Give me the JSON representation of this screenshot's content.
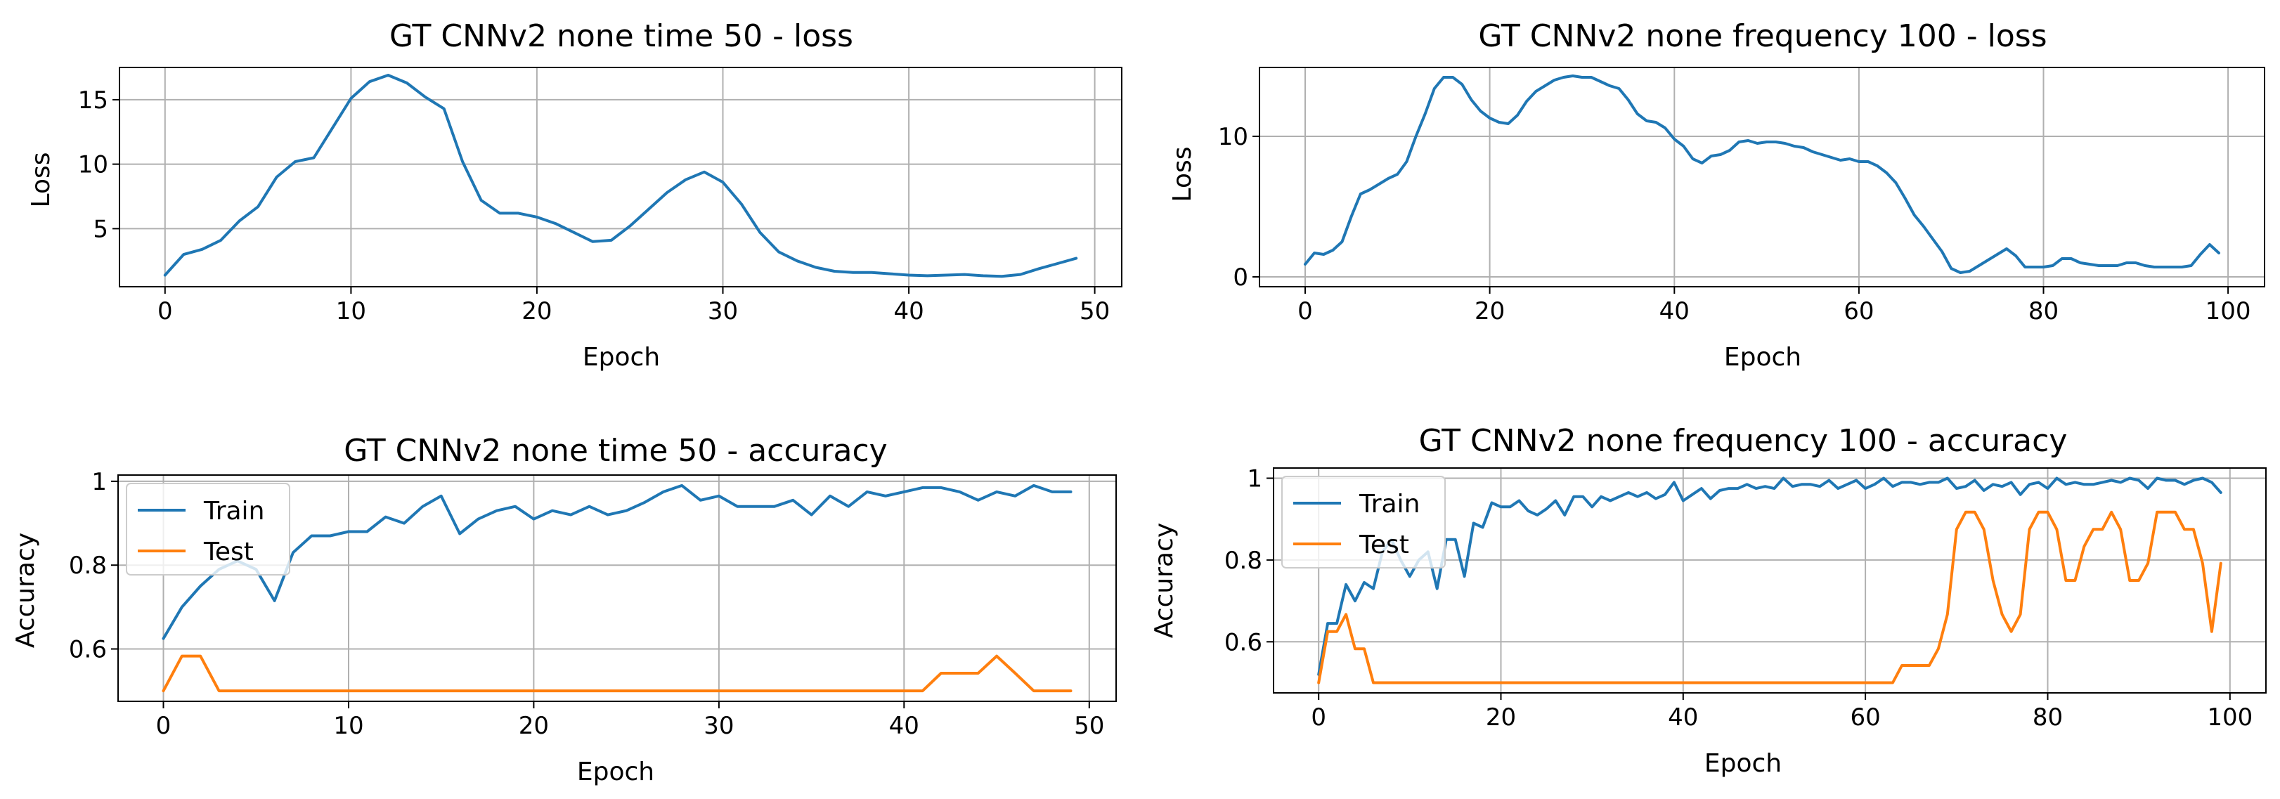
{
  "figure": {
    "colors": {
      "train": "#1f77b4",
      "test": "#ff7f0e",
      "grid": "#b0b0b0"
    }
  },
  "chart_data": [
    {
      "type": "line",
      "title": "GT CNNv2 none time 50 - loss",
      "xlabel": "Epoch",
      "ylabel": "Loss",
      "xlim": [
        -2.45,
        51.45
      ],
      "ylim": [
        0.5,
        17.5
      ],
      "xticks": [
        0,
        10,
        20,
        30,
        40,
        50
      ],
      "yticks": [
        5,
        10,
        15
      ],
      "grid": true,
      "legend": null,
      "series": [
        {
          "name": "Loss",
          "color": "#1f77b4",
          "x_start": 0,
          "values": [
            1.4,
            3.0,
            3.4,
            4.1,
            5.6,
            6.7,
            9.0,
            10.2,
            10.5,
            12.8,
            15.1,
            16.4,
            16.9,
            16.3,
            15.2,
            14.3,
            10.2,
            7.2,
            6.2,
            6.2,
            5.9,
            5.4,
            4.7,
            4.0,
            4.1,
            5.2,
            6.5,
            7.8,
            8.8,
            9.4,
            8.6,
            6.9,
            4.7,
            3.2,
            2.5,
            2.0,
            1.7,
            1.6,
            1.6,
            1.5,
            1.4,
            1.35,
            1.4,
            1.45,
            1.35,
            1.3,
            1.45,
            1.9,
            2.3,
            2.7
          ]
        }
      ]
    },
    {
      "type": "line",
      "title": "GT CNNv2 none frequency 100 - loss",
      "xlabel": "Epoch",
      "ylabel": "Loss",
      "xlim": [
        -4.95,
        103.95
      ],
      "ylim": [
        -0.7,
        14.9
      ],
      "xticks": [
        0,
        20,
        40,
        60,
        80,
        100
      ],
      "yticks": [
        0,
        10
      ],
      "grid": true,
      "legend": null,
      "series": [
        {
          "name": "Loss",
          "color": "#1f77b4",
          "x_start": 0,
          "values": [
            0.9,
            1.7,
            1.6,
            1.9,
            2.5,
            4.3,
            5.9,
            6.2,
            6.6,
            7.0,
            7.3,
            8.2,
            10.0,
            11.6,
            13.4,
            14.2,
            14.2,
            13.7,
            12.6,
            11.8,
            11.3,
            11.0,
            10.9,
            11.5,
            12.5,
            13.2,
            13.6,
            14.0,
            14.2,
            14.3,
            14.2,
            14.2,
            13.9,
            13.6,
            13.4,
            12.6,
            11.6,
            11.1,
            11.0,
            10.6,
            9.8,
            9.3,
            8.4,
            8.1,
            8.6,
            8.7,
            9.0,
            9.6,
            9.7,
            9.5,
            9.6,
            9.6,
            9.5,
            9.3,
            9.2,
            8.9,
            8.7,
            8.5,
            8.3,
            8.4,
            8.2,
            8.2,
            7.9,
            7.4,
            6.7,
            5.6,
            4.4,
            3.6,
            2.7,
            1.8,
            0.6,
            0.3,
            0.4,
            0.8,
            1.2,
            1.6,
            2.0,
            1.5,
            0.7,
            0.7,
            0.7,
            0.8,
            1.3,
            1.3,
            1.0,
            0.9,
            0.8,
            0.8,
            0.8,
            1.0,
            1.0,
            0.8,
            0.7,
            0.7,
            0.7,
            0.7,
            0.8,
            1.6,
            2.3,
            1.7
          ]
        }
      ]
    },
    {
      "type": "line",
      "title": "GT CNNv2 none time 50 - accuracy",
      "xlabel": "Epoch",
      "ylabel": "Accuracy",
      "xlim": [
        -2.45,
        51.45
      ],
      "ylim": [
        0.475,
        1.015
      ],
      "xticks": [
        0,
        10,
        20,
        30,
        40,
        50
      ],
      "yticks": [
        0.6,
        0.8,
        1.0
      ],
      "grid": true,
      "legend": "upper left",
      "series": [
        {
          "name": "Train",
          "color": "#1f77b4",
          "x_start": 0,
          "values": [
            0.625,
            0.7,
            0.75,
            0.79,
            0.81,
            0.79,
            0.715,
            0.83,
            0.87,
            0.87,
            0.88,
            0.88,
            0.915,
            0.9,
            0.94,
            0.965,
            0.875,
            0.91,
            0.93,
            0.94,
            0.91,
            0.93,
            0.92,
            0.94,
            0.92,
            0.93,
            0.95,
            0.975,
            0.99,
            0.955,
            0.965,
            0.94,
            0.94,
            0.94,
            0.955,
            0.92,
            0.965,
            0.94,
            0.975,
            0.965,
            0.975,
            0.985,
            0.985,
            0.975,
            0.955,
            0.975,
            0.965,
            0.99,
            0.975,
            0.975
          ]
        },
        {
          "name": "Test",
          "color": "#ff7f0e",
          "x_start": 0,
          "values": [
            0.5,
            0.583,
            0.583,
            0.5,
            0.5,
            0.5,
            0.5,
            0.5,
            0.5,
            0.5,
            0.5,
            0.5,
            0.5,
            0.5,
            0.5,
            0.5,
            0.5,
            0.5,
            0.5,
            0.5,
            0.5,
            0.5,
            0.5,
            0.5,
            0.5,
            0.5,
            0.5,
            0.5,
            0.5,
            0.5,
            0.5,
            0.5,
            0.5,
            0.5,
            0.5,
            0.5,
            0.5,
            0.5,
            0.5,
            0.5,
            0.5,
            0.5,
            0.542,
            0.542,
            0.542,
            0.583,
            0.542,
            0.5,
            0.5,
            0.5
          ]
        }
      ]
    },
    {
      "type": "line",
      "title": "GT CNNv2 none frequency 100 - accuracy",
      "xlabel": "Epoch",
      "ylabel": "Accuracy",
      "xlim": [
        -4.95,
        103.95
      ],
      "ylim": [
        0.475,
        1.025
      ],
      "xticks": [
        0,
        20,
        40,
        60,
        80,
        100
      ],
      "yticks": [
        0.6,
        0.8,
        1.0
      ],
      "grid": true,
      "legend": "upper left",
      "series": [
        {
          "name": "Train",
          "color": "#1f77b4",
          "x_start": 0,
          "values": [
            0.52,
            0.645,
            0.645,
            0.74,
            0.7,
            0.745,
            0.73,
            0.82,
            0.85,
            0.8,
            0.76,
            0.8,
            0.82,
            0.73,
            0.85,
            0.85,
            0.76,
            0.89,
            0.88,
            0.94,
            0.93,
            0.93,
            0.945,
            0.92,
            0.91,
            0.925,
            0.945,
            0.91,
            0.955,
            0.955,
            0.93,
            0.955,
            0.945,
            0.955,
            0.965,
            0.955,
            0.965,
            0.95,
            0.96,
            0.99,
            0.945,
            0.96,
            0.975,
            0.95,
            0.97,
            0.975,
            0.975,
            0.985,
            0.975,
            0.98,
            0.975,
            1.0,
            0.98,
            0.985,
            0.985,
            0.98,
            0.995,
            0.975,
            0.985,
            0.995,
            0.975,
            0.985,
            1.0,
            0.98,
            0.99,
            0.99,
            0.985,
            0.99,
            0.99,
            1.0,
            0.975,
            0.98,
            0.995,
            0.97,
            0.985,
            0.98,
            0.99,
            0.96,
            0.985,
            0.99,
            0.975,
            1.0,
            0.985,
            0.99,
            0.985,
            0.985,
            0.99,
            0.995,
            0.99,
            1.0,
            0.995,
            0.975,
            1.0,
            0.995,
            0.995,
            0.985,
            0.995,
            1.0,
            0.99,
            0.965
          ]
        },
        {
          "name": "Test",
          "color": "#ff7f0e",
          "x_start": 0,
          "values": [
            0.5,
            0.625,
            0.625,
            0.667,
            0.583,
            0.583,
            0.5,
            0.5,
            0.5,
            0.5,
            0.5,
            0.5,
            0.5,
            0.5,
            0.5,
            0.5,
            0.5,
            0.5,
            0.5,
            0.5,
            0.5,
            0.5,
            0.5,
            0.5,
            0.5,
            0.5,
            0.5,
            0.5,
            0.5,
            0.5,
            0.5,
            0.5,
            0.5,
            0.5,
            0.5,
            0.5,
            0.5,
            0.5,
            0.5,
            0.5,
            0.5,
            0.5,
            0.5,
            0.5,
            0.5,
            0.5,
            0.5,
            0.5,
            0.5,
            0.5,
            0.5,
            0.5,
            0.5,
            0.5,
            0.5,
            0.5,
            0.5,
            0.5,
            0.5,
            0.5,
            0.5,
            0.5,
            0.5,
            0.5,
            0.542,
            0.542,
            0.542,
            0.542,
            0.583,
            0.667,
            0.875,
            0.917,
            0.917,
            0.875,
            0.75,
            0.667,
            0.625,
            0.667,
            0.875,
            0.917,
            0.917,
            0.875,
            0.75,
            0.75,
            0.833,
            0.875,
            0.875,
            0.917,
            0.875,
            0.75,
            0.75,
            0.792,
            0.917,
            0.917,
            0.917,
            0.875,
            0.875,
            0.792,
            0.625,
            0.792
          ]
        }
      ]
    }
  ]
}
